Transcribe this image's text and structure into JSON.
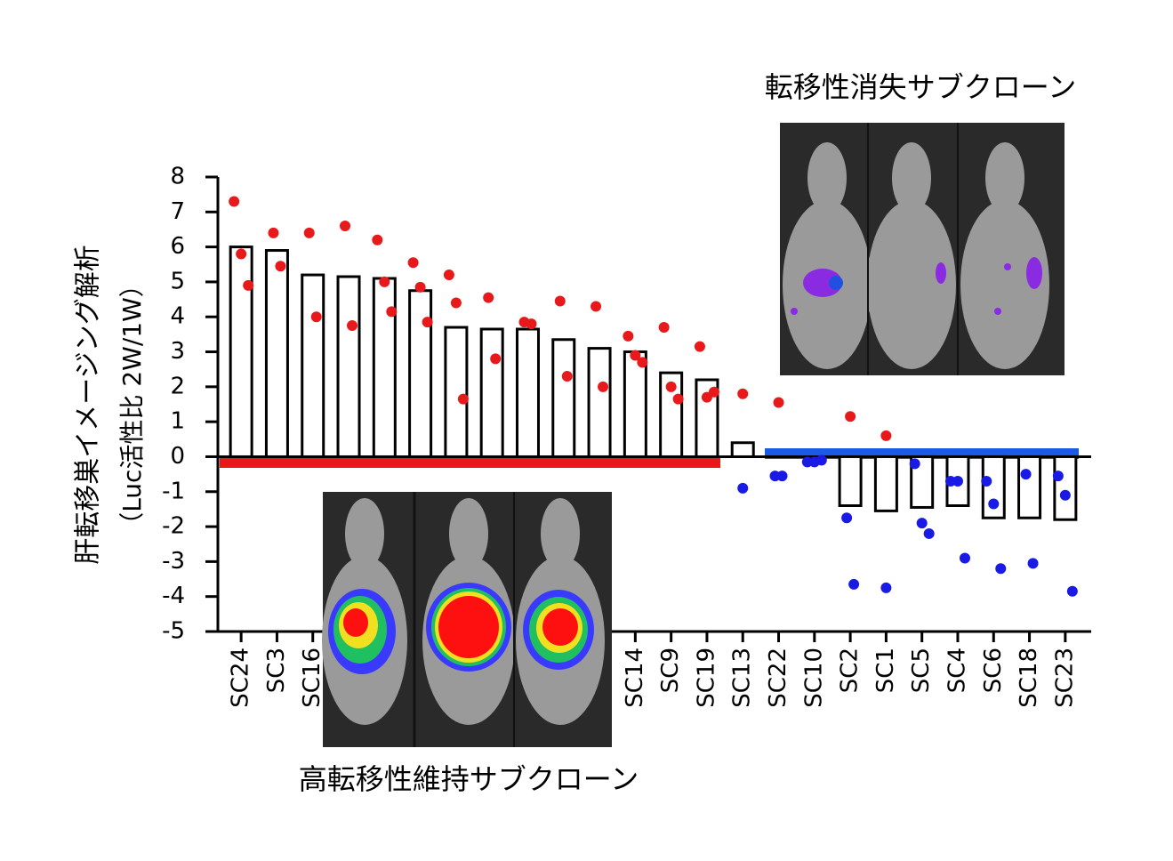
{
  "chart_data": {
    "type": "bar",
    "annotations": [
      "転移性消失サブクローン",
      "高転移性維持サブクローン"
    ],
    "ylabel": [
      "肝転移巣イメージング解析",
      "（Luc活性比 2W/1W）"
    ],
    "categories": [
      "SC24",
      "SC3",
      "SC16",
      null,
      null,
      null,
      null,
      null,
      null,
      null,
      null,
      "SC14",
      "SC9",
      "SC19",
      "SC13",
      "SC22",
      "SC10",
      "SC2",
      "SC1",
      "SC5",
      "SC4",
      "SC6",
      "SC18",
      "SC23"
    ],
    "values": [
      6.0,
      5.9,
      5.2,
      5.15,
      5.1,
      4.75,
      3.7,
      3.65,
      3.65,
      3.35,
      3.1,
      3.0,
      2.4,
      2.2,
      0.4,
      0,
      0,
      -1.4,
      -1.55,
      -1.45,
      -1.4,
      -1.75,
      -1.75,
      -1.8
    ],
    "color": "#ffffff",
    "dots": [
      {
        "color": "#e8191b",
        "values": [
          [
            7.3,
            5.8,
            4.9
          ],
          [
            6.4,
            5.45
          ],
          [
            6.4,
            4.0
          ],
          [
            6.6,
            3.75
          ],
          [
            6.2,
            5.0,
            4.15
          ],
          [
            5.55,
            4.85,
            3.85
          ],
          [
            5.2,
            4.4,
            1.65
          ],
          [
            4.55,
            2.8
          ],
          [
            3.85,
            3.8
          ],
          [
            4.45,
            2.3
          ],
          [
            4.3,
            2.0
          ],
          [
            3.45,
            2.9,
            2.7
          ],
          [
            3.7,
            2.0,
            1.65
          ],
          [
            3.15,
            1.7,
            1.85
          ],
          [
            1.8
          ],
          [
            1.55
          ],
          [],
          [
            1.15
          ],
          [
            0.6
          ],
          [],
          [],
          [],
          [],
          []
        ]
      },
      {
        "color": "#1a1ae6",
        "values": [
          [],
          [],
          [],
          [],
          [],
          [],
          [],
          [],
          [],
          [],
          [],
          [],
          [],
          [],
          [
            -0.9
          ],
          [
            -0.55,
            -0.55
          ],
          [
            -0.15,
            -0.15,
            -0.1
          ],
          [
            -1.75,
            -3.65
          ],
          [
            -3.75
          ],
          [
            -0.2,
            -1.9,
            -2.2
          ],
          [
            -0.7,
            -0.7,
            -2.9
          ],
          [
            -0.7,
            -1.35,
            -3.2
          ],
          [
            -0.5,
            -3.05
          ],
          [
            -0.55,
            -1.1,
            -3.85
          ]
        ]
      }
    ],
    "ylim": [
      -5,
      8
    ],
    "yticks": [
      -5,
      -4,
      -3,
      -2,
      -1,
      0,
      1,
      2,
      3,
      4,
      5,
      6,
      7,
      8
    ]
  }
}
